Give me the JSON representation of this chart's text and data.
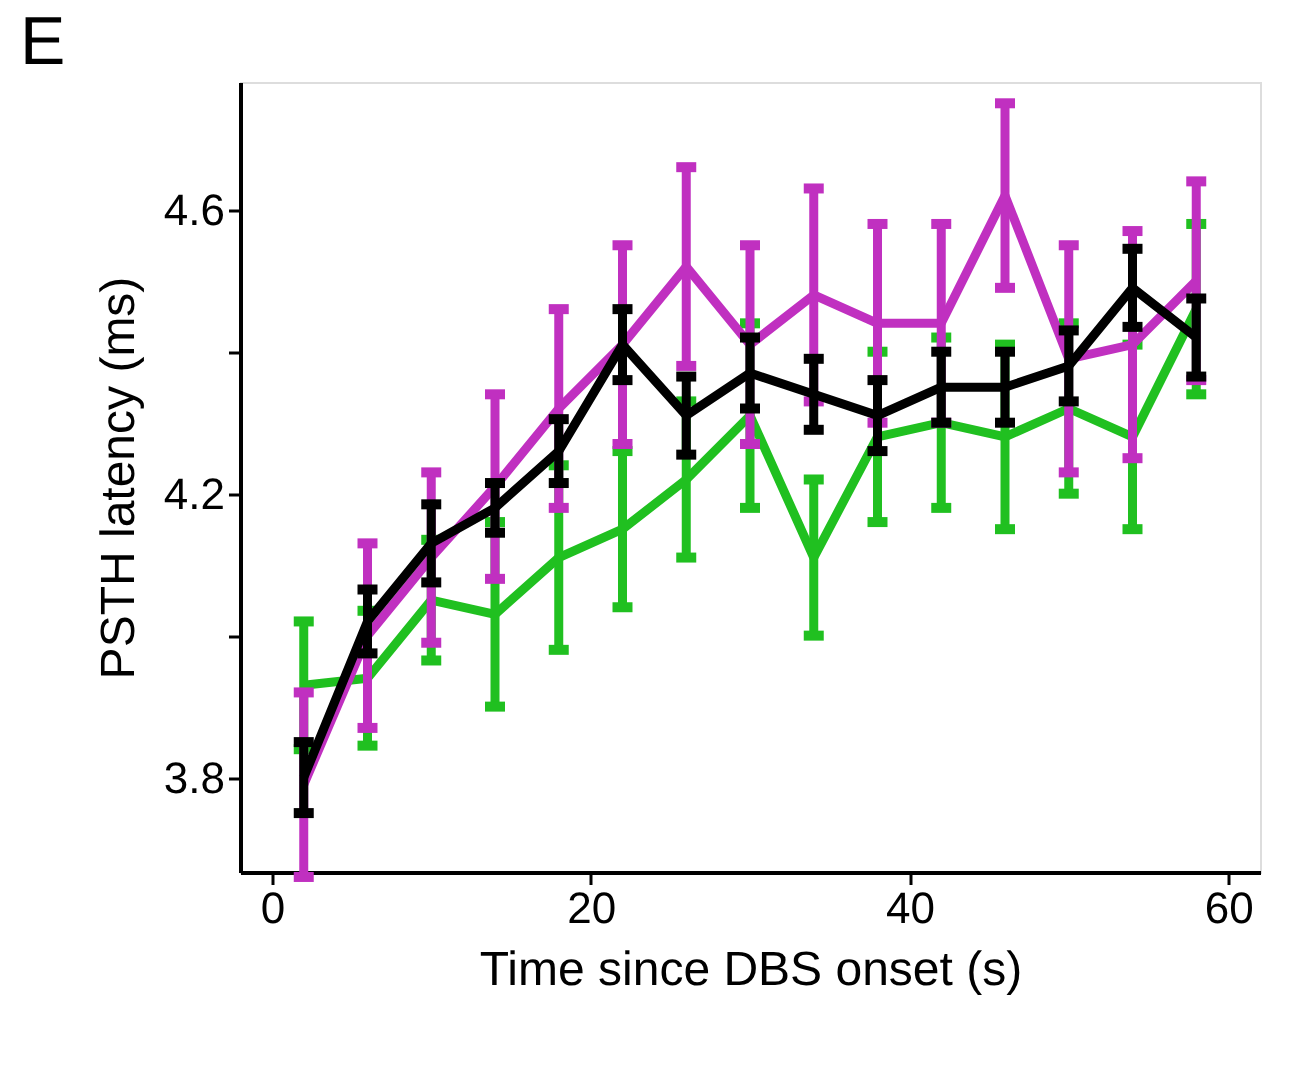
{
  "chart_data": {
    "type": "line",
    "title": "E",
    "xlabel": "Time since DBS onset (s)",
    "ylabel": "PSTH latency (ms)",
    "x": [
      2,
      6,
      10,
      14,
      18,
      22,
      26,
      30,
      34,
      38,
      42,
      46,
      50,
      54,
      58
    ],
    "xlim": [
      -2,
      62
    ],
    "xticks": [
      0,
      20,
      40,
      60
    ],
    "ylim": [
      3.667,
      4.78
    ],
    "yticks": [
      3.8,
      {
        "value": 4.0,
        "label": null
      },
      4.2,
      {
        "value": 4.4,
        "label": null
      },
      4.6
    ],
    "grid": false,
    "legend": false,
    "marker": "none",
    "line_style": "solid",
    "series": [
      {
        "color": "#20c020",
        "values": [
          3.93,
          3.94,
          4.05,
          4.03,
          4.11,
          4.15,
          4.22,
          4.31,
          4.11,
          4.28,
          4.3,
          4.28,
          4.32,
          4.28,
          4.46
        ],
        "errors": [
          0.09,
          0.095,
          0.085,
          0.13,
          0.13,
          0.11,
          0.11,
          0.13,
          0.11,
          0.12,
          0.12,
          0.13,
          0.12,
          0.13,
          0.12
        ]
      },
      {
        "color": "#c030c0",
        "values": [
          3.79,
          4.0,
          4.11,
          4.21,
          4.32,
          4.41,
          4.52,
          4.41,
          4.48,
          4.44,
          4.44,
          4.62,
          4.39,
          4.41,
          4.5
        ],
        "errors": [
          0.13,
          0.13,
          0.12,
          0.13,
          0.14,
          0.14,
          0.14,
          0.14,
          0.15,
          0.14,
          0.14,
          0.13,
          0.16,
          0.16,
          0.14
        ]
      },
      {
        "color": "#000000",
        "values": [
          3.8,
          4.02,
          4.13,
          4.18,
          4.26,
          4.41,
          4.31,
          4.37,
          4.34,
          4.31,
          4.35,
          4.35,
          4.38,
          4.49,
          4.42
        ],
        "errors": [
          0.05,
          0.045,
          0.055,
          0.035,
          0.045,
          0.05,
          0.055,
          0.05,
          0.05,
          0.05,
          0.05,
          0.05,
          0.05,
          0.055,
          0.055
        ]
      }
    ]
  }
}
